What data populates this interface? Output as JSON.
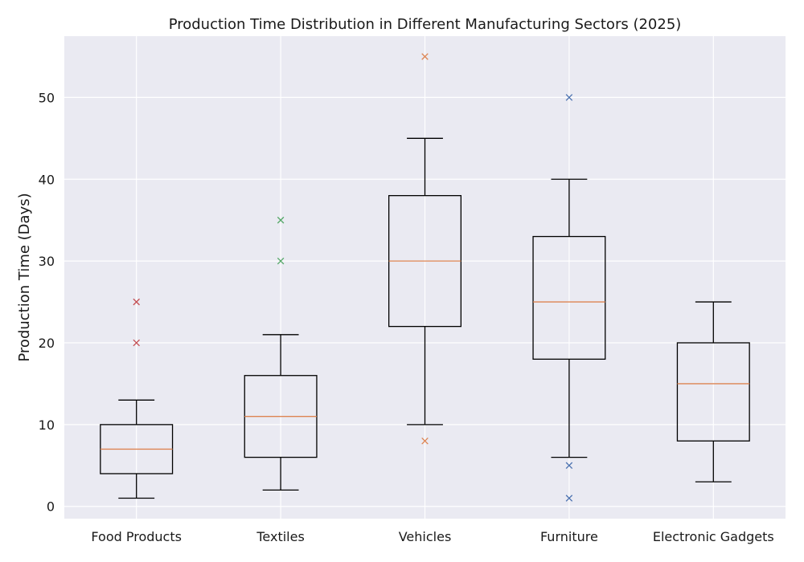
{
  "chart_data": {
    "type": "box",
    "title": "Production Time Distribution in Different Manufacturing Sectors (2025)",
    "xlabel": "",
    "ylabel": "Production Time (Days)",
    "ylim": [
      -1.5,
      57.5
    ],
    "yticks": [
      0,
      10,
      20,
      30,
      40,
      50
    ],
    "grid": true,
    "categories": [
      "Food Products",
      "Textiles",
      "Vehicles",
      "Furniture",
      "Electronic Gadgets"
    ],
    "boxes": [
      {
        "category": "Food Products",
        "whisker_low": 1,
        "q1": 4,
        "median": 7,
        "q3": 10,
        "whisker_high": 13,
        "outliers": [
          20,
          25
        ],
        "outlier_color": "#c44e52"
      },
      {
        "category": "Textiles",
        "whisker_low": 2,
        "q1": 6,
        "median": 11,
        "q3": 16,
        "whisker_high": 21,
        "outliers": [
          30,
          35
        ],
        "outlier_color": "#55a868"
      },
      {
        "category": "Vehicles",
        "whisker_low": 10,
        "q1": 22,
        "median": 30,
        "q3": 38,
        "whisker_high": 45,
        "outliers": [
          8,
          55
        ],
        "outlier_color": "#dd8452"
      },
      {
        "category": "Furniture",
        "whisker_low": 6,
        "q1": 18,
        "median": 25,
        "q3": 33,
        "whisker_high": 40,
        "outliers": [
          1,
          5,
          50
        ],
        "outlier_color": "#4c72b0"
      },
      {
        "category": "Electronic Gadgets",
        "whisker_low": 3,
        "q1": 8,
        "median": 15,
        "q3": 20,
        "whisker_high": 25,
        "outliers": [],
        "outlier_color": "#4c72b0"
      }
    ],
    "colors": {
      "background": "#eaeaf2",
      "grid": "#ffffff",
      "box": "#000000",
      "median": "#dd8452"
    }
  }
}
